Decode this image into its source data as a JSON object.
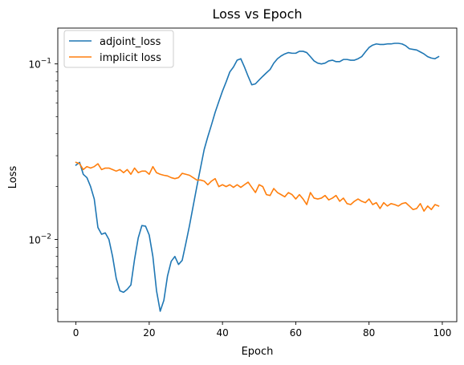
{
  "chart_data": {
    "type": "line",
    "title": "Loss vs Epoch",
    "xlabel": "Epoch",
    "ylabel": "Loss",
    "yscale": "log",
    "xlim": [
      -4.95,
      103.95
    ],
    "ylim": [
      0.0034,
      0.16
    ],
    "xticks": [
      0,
      20,
      40,
      60,
      80,
      100
    ],
    "yticks": [
      {
        "value": 0.01,
        "base": "10",
        "exp": "−2"
      },
      {
        "value": 0.1,
        "base": "10",
        "exp": "−1"
      }
    ],
    "grid": false,
    "legend_position": "upper left",
    "series": [
      {
        "name": "adjoint_loss",
        "color": "#1f77b4",
        "x": [
          0,
          1,
          2,
          3,
          4,
          5,
          6,
          7,
          8,
          9,
          10,
          11,
          12,
          13,
          14,
          15,
          16,
          17,
          18,
          19,
          20,
          21,
          22,
          23,
          24,
          25,
          26,
          27,
          28,
          29,
          30,
          31,
          32,
          33,
          34,
          35,
          36,
          37,
          38,
          39,
          40,
          41,
          42,
          43,
          44,
          45,
          46,
          47,
          48,
          49,
          50,
          51,
          52,
          53,
          54,
          55,
          56,
          57,
          58,
          59,
          60,
          61,
          62,
          63,
          64,
          65,
          66,
          67,
          68,
          69,
          70,
          71,
          72,
          73,
          74,
          75,
          76,
          77,
          78,
          79,
          80,
          81,
          82,
          83,
          84,
          85,
          86,
          87,
          88,
          89,
          90,
          91,
          92,
          93,
          94,
          95,
          96,
          97,
          98,
          99
        ],
        "values": [
          0.0265,
          0.0275,
          0.0235,
          0.0225,
          0.02,
          0.017,
          0.0117,
          0.0107,
          0.0109,
          0.01,
          0.008,
          0.006,
          0.0051,
          0.005,
          0.0052,
          0.0055,
          0.0077,
          0.0102,
          0.012,
          0.0119,
          0.0106,
          0.008,
          0.0051,
          0.0039,
          0.0045,
          0.0062,
          0.0075,
          0.008,
          0.0072,
          0.0076,
          0.0095,
          0.012,
          0.0155,
          0.02,
          0.0255,
          0.0325,
          0.0385,
          0.045,
          0.053,
          0.061,
          0.07,
          0.079,
          0.09,
          0.096,
          0.105,
          0.107,
          0.096,
          0.085,
          0.076,
          0.077,
          0.081,
          0.085,
          0.089,
          0.093,
          0.101,
          0.107,
          0.111,
          0.114,
          0.116,
          0.115,
          0.115,
          0.118,
          0.118,
          0.116,
          0.11,
          0.104,
          0.101,
          0.1,
          0.101,
          0.104,
          0.105,
          0.103,
          0.103,
          0.106,
          0.106,
          0.105,
          0.105,
          0.107,
          0.11,
          0.117,
          0.124,
          0.128,
          0.13,
          0.129,
          0.129,
          0.13,
          0.13,
          0.131,
          0.131,
          0.13,
          0.127,
          0.122,
          0.121,
          0.12,
          0.117,
          0.114,
          0.11,
          0.108,
          0.107,
          0.11
        ]
      },
      {
        "name": "implicit loss",
        "color": "#ff7f0e",
        "x": [
          0,
          1,
          2,
          3,
          4,
          5,
          6,
          7,
          8,
          9,
          10,
          11,
          12,
          13,
          14,
          15,
          16,
          17,
          18,
          19,
          20,
          21,
          22,
          23,
          24,
          25,
          26,
          27,
          28,
          29,
          30,
          31,
          32,
          33,
          34,
          35,
          36,
          37,
          38,
          39,
          40,
          41,
          42,
          43,
          44,
          45,
          46,
          47,
          48,
          49,
          50,
          51,
          52,
          53,
          54,
          55,
          56,
          57,
          58,
          59,
          60,
          61,
          62,
          63,
          64,
          65,
          66,
          67,
          68,
          69,
          70,
          71,
          72,
          73,
          74,
          75,
          76,
          77,
          78,
          79,
          80,
          81,
          82,
          83,
          84,
          85,
          86,
          87,
          88,
          89,
          90,
          91,
          92,
          93,
          94,
          95,
          96,
          97,
          98,
          99
        ],
        "values": [
          0.0275,
          0.027,
          0.025,
          0.026,
          0.0255,
          0.026,
          0.027,
          0.025,
          0.0255,
          0.0255,
          0.025,
          0.0245,
          0.025,
          0.024,
          0.025,
          0.0235,
          0.0255,
          0.024,
          0.0245,
          0.0245,
          0.0235,
          0.026,
          0.024,
          0.0235,
          0.0232,
          0.023,
          0.0225,
          0.0222,
          0.0225,
          0.0238,
          0.0235,
          0.0232,
          0.0225,
          0.0218,
          0.0218,
          0.0215,
          0.0205,
          0.0215,
          0.0222,
          0.02,
          0.0205,
          0.02,
          0.0205,
          0.0198,
          0.0205,
          0.0198,
          0.0205,
          0.0212,
          0.0198,
          0.0185,
          0.0205,
          0.02,
          0.018,
          0.0178,
          0.0195,
          0.0185,
          0.018,
          0.0175,
          0.0185,
          0.018,
          0.017,
          0.018,
          0.017,
          0.0158,
          0.0185,
          0.0172,
          0.017,
          0.0172,
          0.0178,
          0.0168,
          0.0172,
          0.0178,
          0.0165,
          0.0172,
          0.016,
          0.0158,
          0.0165,
          0.017,
          0.0165,
          0.0162,
          0.017,
          0.0158,
          0.0162,
          0.015,
          0.0162,
          0.0155,
          0.016,
          0.0158,
          0.0155,
          0.016,
          0.0162,
          0.0155,
          0.0148,
          0.015,
          0.016,
          0.0145,
          0.0155,
          0.0148,
          0.0158,
          0.0155
        ]
      }
    ]
  }
}
